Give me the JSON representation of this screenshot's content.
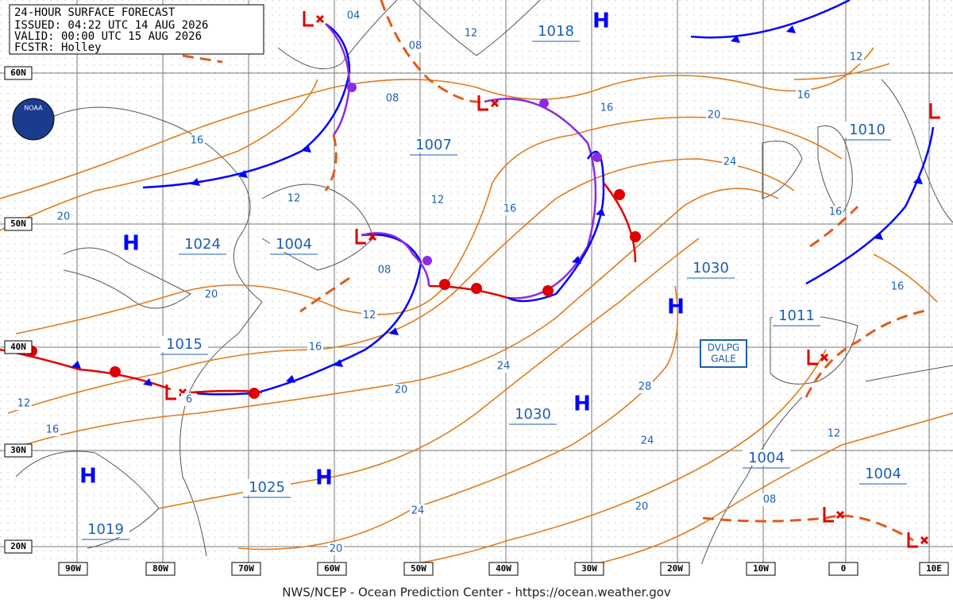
{
  "header": [
    "24-HOUR SURFACE FORECAST",
    "ISSUED: 04:22 UTC 14 AUG 2026",
    "VALID:  00:00 UTC 15 AUG 2026",
    "FCSTR:  Holley"
  ],
  "logo_text": "NOAA",
  "lat_labels": [
    "60N",
    "50N",
    "40N",
    "30N",
    "20N"
  ],
  "lon_labels": [
    "90W",
    "80W",
    "70W",
    "60W",
    "50W",
    "40W",
    "30W",
    "20W",
    "10W",
    "0",
    "10E"
  ],
  "pressure_labels": [
    "1018",
    "1007",
    "1024",
    "1004",
    "1015",
    "1030",
    "1011",
    "1010",
    "1030",
    "1004",
    "1004",
    "1025",
    "1019"
  ],
  "highs": [
    "H",
    "H",
    "H",
    "H",
    "H",
    "H"
  ],
  "isobar_labels": [
    "04",
    "12",
    "08",
    "12",
    "08",
    "16",
    "16",
    "20",
    "16",
    "24",
    "12",
    "12",
    "16",
    "16",
    "20",
    "08",
    "20",
    "12",
    "16",
    "16",
    "24",
    "20",
    "6",
    "28",
    "12",
    "16",
    "24",
    "12",
    "08",
    "24",
    "20",
    "20"
  ],
  "gale_label": [
    "DVLPG",
    "GALE"
  ],
  "footer": "NWS/NCEP - Ocean Prediction Center - https://ocean.weather.gov"
}
